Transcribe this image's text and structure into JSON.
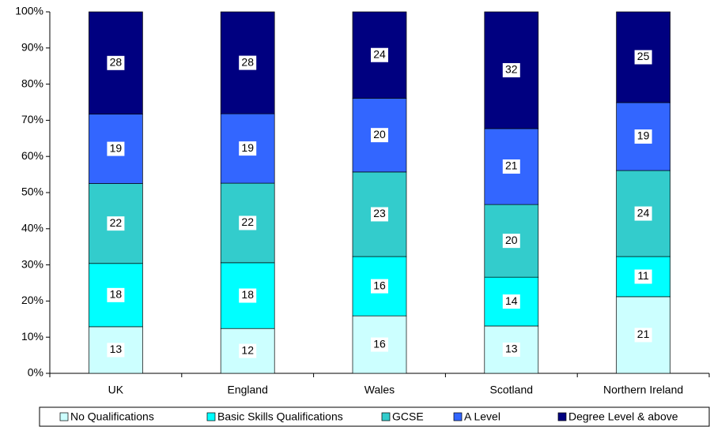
{
  "chart_data": {
    "type": "stacked_bar",
    "categories": [
      "UK",
      "England",
      "Wales",
      "Scotland",
      "Northern Ireland"
    ],
    "series": [
      {
        "name": "No Qualifications",
        "color": "#ccffff",
        "values": [
          12.9,
          12.4,
          15.9,
          13.1,
          21.2
        ],
        "value_labels": [
          "13",
          "12",
          "16",
          "13",
          "21"
        ]
      },
      {
        "name": "Basic Skills Qualifications",
        "color": "#00ffff",
        "values": [
          17.5,
          18.2,
          16.4,
          13.5,
          11.1
        ],
        "value_labels": [
          "18",
          "18",
          "16",
          "14",
          "11"
        ]
      },
      {
        "name": "GCSE",
        "color": "#33cccc",
        "values": [
          22.1,
          22.0,
          23.4,
          20.1,
          23.8
        ],
        "value_labels": [
          "22",
          "22",
          "23",
          "20",
          "24"
        ]
      },
      {
        "name": "A Level",
        "color": "#3366ff",
        "values": [
          19.2,
          19.2,
          20.4,
          21.0,
          18.8
        ],
        "value_labels": [
          "19",
          "19",
          "20",
          "21",
          "19"
        ]
      },
      {
        "name": "Degree Level & above",
        "color": "#000080",
        "values": [
          28.3,
          28.2,
          23.9,
          32.3,
          25.1
        ],
        "value_labels": [
          "28",
          "28",
          "24",
          "32",
          "25"
        ]
      }
    ],
    "ylim": [
      0,
      100
    ],
    "yticks": [
      {
        "value": 0,
        "label": "0%"
      },
      {
        "value": 10,
        "label": "10%"
      },
      {
        "value": 20,
        "label": "20%"
      },
      {
        "value": 30,
        "label": "30%"
      },
      {
        "value": 40,
        "label": "40%"
      },
      {
        "value": 50,
        "label": "50%"
      },
      {
        "value": 60,
        "label": "60%"
      },
      {
        "value": 70,
        "label": "70%"
      },
      {
        "value": 80,
        "label": "80%"
      },
      {
        "value": 90,
        "label": "90%"
      },
      {
        "value": 100,
        "label": "100%"
      }
    ],
    "legend": "bottom"
  }
}
